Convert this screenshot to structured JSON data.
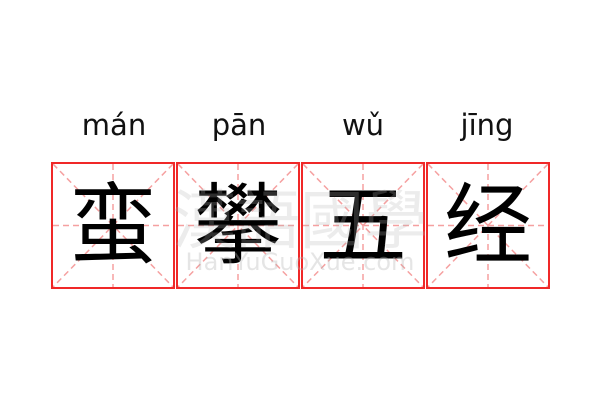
{
  "pinyin": [
    "mán",
    "pān",
    "wǔ",
    "jīng"
  ],
  "characters": [
    "蛮",
    "攀",
    "五",
    "经"
  ],
  "watermark": {
    "cn": "漢語國學",
    "en": "HanYuGuoXue.com"
  },
  "colors": {
    "border": "#f02828",
    "guide": "#f5a0a0"
  }
}
